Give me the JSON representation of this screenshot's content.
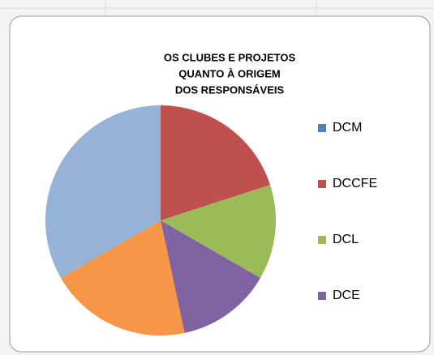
{
  "chart_data": {
    "type": "pie",
    "title": [
      "OS CLUBES E PROJETOS",
      "QUANTO À ORIGEM",
      "DOS RESPONSÁVEIS"
    ],
    "categories": [
      "DCM",
      "DCCFE",
      "DCL",
      "DCE",
      null,
      null
    ],
    "values": [
      0,
      3,
      2,
      2,
      3,
      5
    ],
    "colors": [
      "#4f81bd",
      "#c0504d",
      "#9bbb59",
      "#8064a2",
      "#f79646",
      "#95b3d7"
    ],
    "legend": "right"
  }
}
